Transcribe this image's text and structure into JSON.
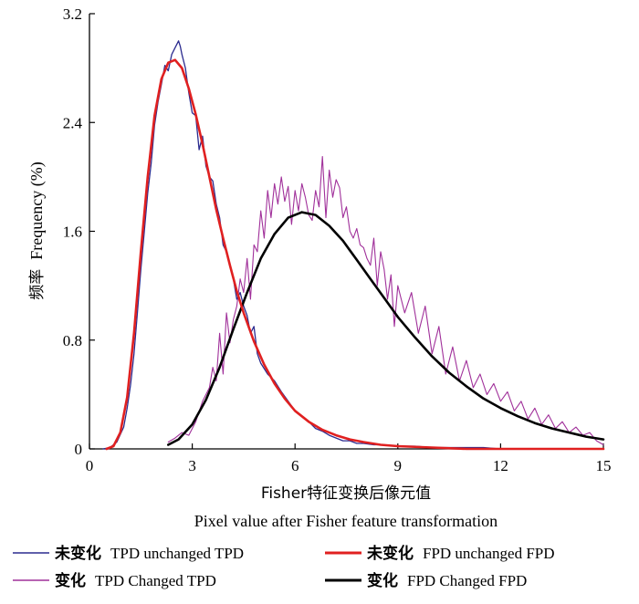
{
  "chart_data": {
    "type": "line",
    "xlabel_cn": "Fisher特征变换后像元值",
    "xlabel_en": "Pixel value after Fisher feature transformation",
    "ylabel_cn": "频率",
    "ylabel_en": "Frequency (%)",
    "xlim": [
      0,
      15
    ],
    "ylim": [
      0,
      3.2
    ],
    "xticks": [
      "0",
      "3",
      "6",
      "9",
      "12",
      "15"
    ],
    "yticks": [
      "0",
      "0.8",
      "1.6",
      "2.4",
      "3.2"
    ],
    "series": [
      {
        "name_cn": "未变化",
        "name_en": "TPD unchanged TPD",
        "color": "#2b2b8f",
        "width": 1.3,
        "x": [
          0.4,
          0.6,
          0.8,
          1.0,
          1.1,
          1.2,
          1.3,
          1.4,
          1.5,
          1.6,
          1.7,
          1.8,
          1.9,
          2.0,
          2.1,
          2.2,
          2.3,
          2.4,
          2.5,
          2.6,
          2.65,
          2.7,
          2.8,
          2.9,
          3.0,
          3.1,
          3.2,
          3.3,
          3.4,
          3.5,
          3.6,
          3.7,
          3.8,
          3.9,
          4.0,
          4.1,
          4.2,
          4.3,
          4.4,
          4.5,
          4.6,
          4.7,
          4.8,
          4.9,
          5.0,
          5.2,
          5.4,
          5.6,
          5.8,
          6.0,
          6.2,
          6.4,
          6.6,
          6.8,
          7.0,
          7.2,
          7.4,
          7.6,
          7.8,
          8.0,
          8.3,
          8.6,
          9.0,
          9.5,
          10.0,
          10.5,
          11.0,
          11.5,
          12.0,
          13.0,
          14.0,
          15.0
        ],
        "values": [
          0.0,
          0.01,
          0.05,
          0.16,
          0.3,
          0.47,
          0.7,
          1.0,
          1.32,
          1.6,
          1.88,
          2.1,
          2.38,
          2.55,
          2.68,
          2.82,
          2.78,
          2.9,
          2.95,
          3.0,
          2.96,
          2.9,
          2.8,
          2.62,
          2.47,
          2.45,
          2.2,
          2.3,
          2.08,
          2.0,
          1.97,
          1.8,
          1.7,
          1.5,
          1.45,
          1.36,
          1.25,
          1.1,
          1.15,
          1.05,
          0.98,
          0.85,
          0.9,
          0.7,
          0.63,
          0.55,
          0.5,
          0.42,
          0.35,
          0.28,
          0.24,
          0.2,
          0.15,
          0.13,
          0.1,
          0.08,
          0.06,
          0.06,
          0.04,
          0.04,
          0.03,
          0.03,
          0.02,
          0.02,
          0.01,
          0.01,
          0.01,
          0.01,
          0.0,
          0.0,
          0.0,
          0.0
        ]
      },
      {
        "name_cn": "未变化",
        "name_en": "FPD unchanged FPD",
        "color": "#e02020",
        "width": 2.6,
        "x": [
          0.5,
          0.7,
          0.9,
          1.1,
          1.3,
          1.5,
          1.7,
          1.9,
          2.1,
          2.3,
          2.5,
          2.7,
          2.9,
          3.1,
          3.3,
          3.5,
          3.7,
          3.9,
          4.1,
          4.3,
          4.5,
          4.8,
          5.1,
          5.4,
          5.7,
          6.0,
          6.4,
          6.8,
          7.2,
          7.6,
          8.0,
          8.5,
          9.0,
          10.0,
          11.0,
          12.0,
          13.0,
          14.0,
          15.0
        ],
        "values": [
          0.0,
          0.02,
          0.12,
          0.38,
          0.85,
          1.45,
          2.0,
          2.45,
          2.72,
          2.84,
          2.86,
          2.8,
          2.65,
          2.46,
          2.24,
          2.0,
          1.76,
          1.55,
          1.35,
          1.16,
          1.0,
          0.79,
          0.62,
          0.48,
          0.37,
          0.28,
          0.2,
          0.14,
          0.1,
          0.07,
          0.05,
          0.03,
          0.02,
          0.01,
          0.0,
          0.0,
          0.0,
          0.0,
          0.0
        ]
      },
      {
        "name_cn": "变化",
        "name_en": "TPD Changed TPD",
        "color": "#a0309a",
        "width": 1.1,
        "x": [
          2.3,
          2.5,
          2.7,
          2.9,
          3.1,
          3.3,
          3.5,
          3.6,
          3.7,
          3.8,
          3.9,
          4.0,
          4.1,
          4.2,
          4.3,
          4.4,
          4.5,
          4.6,
          4.7,
          4.8,
          4.9,
          5.0,
          5.1,
          5.2,
          5.3,
          5.4,
          5.5,
          5.6,
          5.7,
          5.8,
          5.9,
          6.0,
          6.1,
          6.2,
          6.3,
          6.4,
          6.5,
          6.6,
          6.7,
          6.8,
          6.9,
          7.0,
          7.1,
          7.2,
          7.3,
          7.4,
          7.5,
          7.6,
          7.7,
          7.8,
          7.9,
          8.0,
          8.1,
          8.2,
          8.3,
          8.4,
          8.5,
          8.6,
          8.7,
          8.8,
          8.9,
          9.0,
          9.2,
          9.4,
          9.6,
          9.8,
          10.0,
          10.2,
          10.4,
          10.6,
          10.8,
          11.0,
          11.2,
          11.4,
          11.6,
          11.8,
          12.0,
          12.2,
          12.4,
          12.6,
          12.8,
          13.0,
          13.2,
          13.4,
          13.6,
          13.8,
          14.0,
          14.2,
          14.4,
          14.6,
          14.8,
          15.0
        ],
        "values": [
          0.05,
          0.08,
          0.12,
          0.1,
          0.2,
          0.35,
          0.45,
          0.6,
          0.5,
          0.85,
          0.55,
          1.0,
          0.78,
          0.95,
          1.05,
          1.25,
          1.15,
          1.4,
          1.1,
          1.5,
          1.45,
          1.75,
          1.55,
          1.9,
          1.7,
          1.95,
          1.8,
          2.0,
          1.82,
          1.93,
          1.65,
          1.9,
          1.75,
          1.95,
          1.85,
          1.72,
          1.68,
          1.9,
          1.78,
          2.15,
          1.7,
          2.05,
          1.85,
          1.98,
          1.92,
          1.7,
          1.78,
          1.6,
          1.55,
          1.62,
          1.5,
          1.48,
          1.4,
          1.35,
          1.55,
          1.2,
          1.45,
          1.32,
          1.1,
          1.28,
          0.9,
          1.2,
          1.0,
          1.15,
          0.85,
          1.05,
          0.7,
          0.9,
          0.55,
          0.75,
          0.5,
          0.65,
          0.45,
          0.55,
          0.4,
          0.48,
          0.35,
          0.42,
          0.28,
          0.35,
          0.22,
          0.3,
          0.18,
          0.25,
          0.15,
          0.2,
          0.12,
          0.16,
          0.1,
          0.12,
          0.06,
          0.03
        ]
      },
      {
        "name_cn": "变化",
        "name_en": "FPD Changed FPD",
        "color": "#000000",
        "width": 2.6,
        "x": [
          2.3,
          2.6,
          3.0,
          3.4,
          3.8,
          4.2,
          4.6,
          5.0,
          5.4,
          5.8,
          6.2,
          6.6,
          7.0,
          7.4,
          7.8,
          8.2,
          8.6,
          9.0,
          9.5,
          10.0,
          10.5,
          11.0,
          11.5,
          12.0,
          12.5,
          13.0,
          13.5,
          14.0,
          14.5,
          15.0
        ],
        "values": [
          0.03,
          0.07,
          0.18,
          0.36,
          0.6,
          0.88,
          1.15,
          1.4,
          1.58,
          1.7,
          1.74,
          1.72,
          1.64,
          1.53,
          1.39,
          1.25,
          1.11,
          0.97,
          0.82,
          0.68,
          0.56,
          0.46,
          0.37,
          0.3,
          0.24,
          0.19,
          0.15,
          0.12,
          0.09,
          0.07
        ]
      }
    ]
  }
}
